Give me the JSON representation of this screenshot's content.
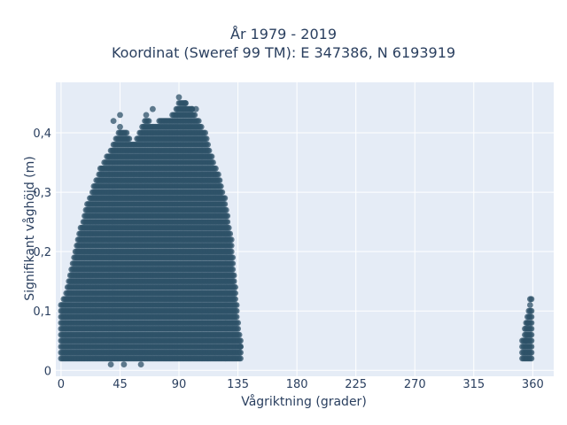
{
  "chart_data": {
    "type": "scatter",
    "title": "År 1979 - 2019",
    "subtitle": "Koordinat (Sweref 99 TM): E 347386, N 6193919",
    "xlabel": "Vågriktning (grader)",
    "ylabel": "Signifikant våghöjd (m)",
    "xlim": [
      -4,
      376
    ],
    "ylim": [
      -0.01,
      0.485
    ],
    "xticks": [
      0,
      45,
      90,
      135,
      180,
      225,
      270,
      315,
      360
    ],
    "xtick_labels": [
      "0",
      "45",
      "90",
      "135",
      "180",
      "225",
      "270",
      "315",
      "360"
    ],
    "yticks": [
      0,
      0.1,
      0.2,
      0.3,
      0.4
    ],
    "ytick_labels": [
      "0",
      "0,1",
      "0,2",
      "0,3",
      "0,4"
    ],
    "grid": true,
    "marker_color": "#2e5168",
    "background_color": "#e5ecf6",
    "envelope": {
      "lower_y": 0.02,
      "upper": [
        [
          0,
          0.11
        ],
        [
          5,
          0.14
        ],
        [
          10,
          0.19
        ],
        [
          15,
          0.24
        ],
        [
          20,
          0.28
        ],
        [
          25,
          0.31
        ],
        [
          30,
          0.34
        ],
        [
          35,
          0.36
        ],
        [
          40,
          0.38
        ],
        [
          45,
          0.41
        ],
        [
          50,
          0.4
        ],
        [
          55,
          0.38
        ],
        [
          60,
          0.4
        ],
        [
          65,
          0.43
        ],
        [
          70,
          0.41
        ],
        [
          75,
          0.42
        ],
        [
          80,
          0.42
        ],
        [
          85,
          0.43
        ],
        [
          90,
          0.45
        ],
        [
          95,
          0.45
        ],
        [
          100,
          0.44
        ],
        [
          105,
          0.42
        ],
        [
          110,
          0.4
        ],
        [
          115,
          0.36
        ],
        [
          120,
          0.33
        ],
        [
          125,
          0.29
        ],
        [
          130,
          0.22
        ],
        [
          133,
          0.14
        ],
        [
          135,
          0.08
        ],
        [
          137,
          0.05
        ]
      ],
      "cluster_360": {
        "x_min": 352,
        "x_max": 359,
        "y_min": 0.02,
        "y_max": 0.12
      }
    },
    "notable_points": [
      [
        90,
        0.46
      ],
      [
        45,
        0.43
      ],
      [
        40,
        0.42
      ],
      [
        70,
        0.44
      ],
      [
        95,
        0.45
      ],
      [
        100,
        0.44
      ],
      [
        103,
        0.44
      ],
      [
        38,
        0.01
      ],
      [
        48,
        0.01
      ],
      [
        61,
        0.01
      ],
      [
        359,
        0.12
      ],
      [
        356,
        0.08
      ],
      [
        355,
        0.05
      ],
      [
        137,
        0.04
      ]
    ]
  }
}
